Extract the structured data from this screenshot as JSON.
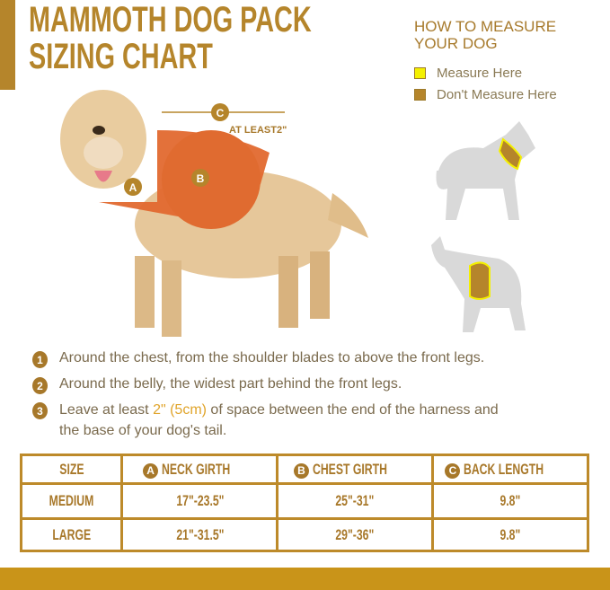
{
  "header": {
    "title_line1": "MAMMOTH DOG PACK",
    "title_line2": "SIZING CHART"
  },
  "measure": {
    "heading_line1": "HOW TO MEASURE",
    "heading_line2": "YOUR DOG",
    "legend": [
      {
        "label": "Measure Here",
        "color": "#f4f000"
      },
      {
        "label": "Don't Measure Here",
        "color": "#b5852b"
      }
    ]
  },
  "photo": {
    "label_a": "A",
    "label_b": "B",
    "label_c": "C",
    "at_least": "AT LEAST2\""
  },
  "instructions": [
    {
      "num": "1",
      "text": "Around the chest, from the shoulder blades to above the front legs."
    },
    {
      "num": "2",
      "text": "Around the belly, the widest part behind the front legs."
    },
    {
      "num": "3",
      "pre": "Leave at least ",
      "highlight": "2\" (5cm)",
      "post": " of space between the end of the harness and",
      "line2": "the base of your dog's tail."
    }
  ],
  "table": {
    "headers": [
      {
        "label": "SIZE"
      },
      {
        "badge": "A",
        "label": "NECK GIRTH"
      },
      {
        "badge": "B",
        "label": "CHEST GIRTH"
      },
      {
        "badge": "C",
        "label": "BACK LENGTH"
      }
    ],
    "rows": [
      [
        "MEDIUM",
        "17\"-23.5\"",
        "25\"-31\"",
        "9.8\""
      ],
      [
        "LARGE",
        "21\"-31.5\"",
        "29\"-36\"",
        "9.8\""
      ]
    ]
  },
  "colors": {
    "accent": "#b5852b",
    "bar": "#c99419"
  }
}
